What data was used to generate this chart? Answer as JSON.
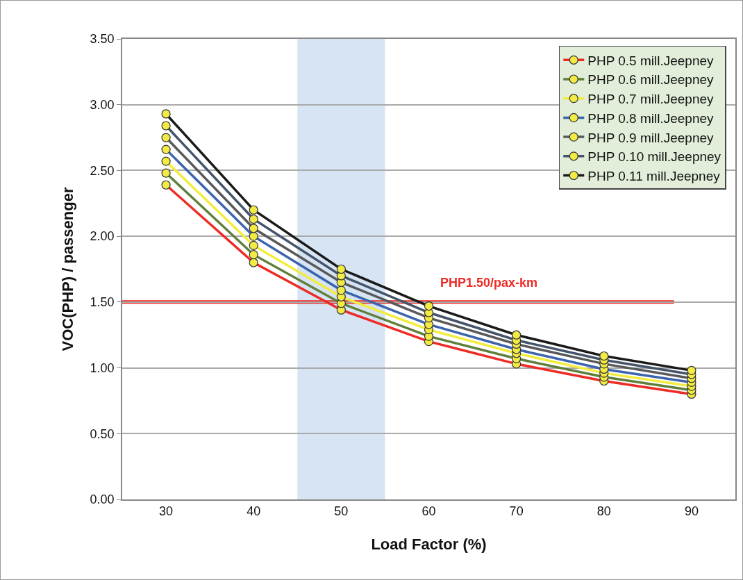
{
  "chart_data": {
    "type": "line",
    "xlabel": "Load Factor (%)",
    "ylabel": "VOC(PHP) / passenger",
    "x": [
      30,
      40,
      50,
      60,
      70,
      80,
      90
    ],
    "series": [
      {
        "name": "PHP 0.5 mill.Jeepney",
        "color": "#ee2a24",
        "values": [
          2.39,
          1.8,
          1.44,
          1.2,
          1.03,
          0.9,
          0.8
        ]
      },
      {
        "name": "PHP 0.6 mill.Jeepney",
        "color": "#5f7f3a",
        "values": [
          2.48,
          1.86,
          1.49,
          1.24,
          1.07,
          0.93,
          0.83
        ]
      },
      {
        "name": "PHP 0.7 mill.Jeepney",
        "color": "#f2ec3c",
        "values": [
          2.57,
          1.93,
          1.54,
          1.29,
          1.11,
          0.96,
          0.86
        ]
      },
      {
        "name": "PHP 0.8 mill.Jeepney",
        "color": "#3b64ad",
        "values": [
          2.66,
          2.0,
          1.59,
          1.33,
          1.14,
          0.99,
          0.89
        ]
      },
      {
        "name": "PHP 0.9 mill.Jeepney",
        "color": "#58595b",
        "values": [
          2.75,
          2.06,
          1.65,
          1.38,
          1.18,
          1.03,
          0.92
        ]
      },
      {
        "name": "PHP 0.10 mill.Jeepney",
        "color": "#44546a",
        "values": [
          2.84,
          2.13,
          1.7,
          1.42,
          1.21,
          1.06,
          0.95
        ]
      },
      {
        "name": "PHP 0.11 mill.Jeepney",
        "color": "#1a1a1a",
        "values": [
          2.93,
          2.2,
          1.75,
          1.47,
          1.25,
          1.09,
          0.98
        ]
      }
    ],
    "xlim": [
      25,
      95
    ],
    "xticks": [
      30,
      40,
      50,
      60,
      70,
      80,
      90
    ],
    "ylim": [
      0,
      3.5
    ],
    "yticks": [
      {
        "value": 0,
        "label": "0.00"
      },
      {
        "value": 0.5,
        "label": "0.50"
      },
      {
        "value": 1,
        "label": "1.00"
      },
      {
        "value": 1.5,
        "label": "1.50"
      },
      {
        "value": 2,
        "label": "2.00"
      },
      {
        "value": 2.5,
        "label": "2.50"
      },
      {
        "value": 3,
        "label": "3.00"
      },
      {
        "value": 3.5,
        "label": "3.50"
      }
    ],
    "ref_lines": [
      {
        "axis": "y",
        "value": 1.5,
        "label": "PHP1.50/pax-km",
        "color": "#ee2a24"
      }
    ],
    "bands": [
      {
        "axis": "x",
        "from": 45,
        "to": 55,
        "color": "#d6e4f4"
      }
    ],
    "grid": "y",
    "legend": "top right",
    "marker": "circle",
    "line_style": "solid"
  }
}
